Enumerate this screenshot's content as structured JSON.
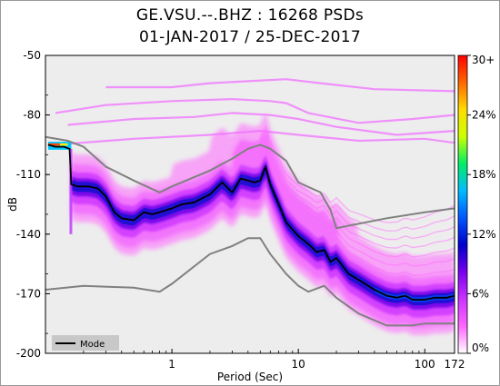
{
  "title_line1": "GE.VSU.--.BHZ : 16268 PSDs",
  "title_line2": "01-JAN-2017 / 25-DEC-2017",
  "chart_data": {
    "type": "heatmap",
    "xlabel": "Period (Sec)",
    "ylabel": "dB",
    "x_scale": "log",
    "xlim": [
      0.1,
      172
    ],
    "ylim": [
      -200,
      -50
    ],
    "x_ticks": [
      {
        "value": 1,
        "label": "1"
      },
      {
        "value": 10,
        "label": "10"
      },
      {
        "value": 100,
        "label": "100"
      },
      {
        "value": 172,
        "label": "172"
      }
    ],
    "y_ticks": [
      {
        "value": -50,
        "label": "-50"
      },
      {
        "value": -80,
        "label": "-80"
      },
      {
        "value": -110,
        "label": "-110"
      },
      {
        "value": -140,
        "label": "-140"
      },
      {
        "value": -170,
        "label": "-170"
      },
      {
        "value": -200,
        "label": "-200"
      }
    ],
    "colorbar": {
      "ticks": [
        "0%",
        "6%",
        "12%",
        "18%",
        "24%",
        "30+"
      ],
      "colors": [
        "#ffffff",
        "#ff66ff",
        "#cc33ff",
        "#7700ee",
        "#0000cc",
        "#0055ff",
        "#00bbff",
        "#00ee66",
        "#ccff00",
        "#ffdd00",
        "#ff6600",
        "#ff0000"
      ]
    },
    "legend": {
      "position": "bottom-left",
      "entries": [
        "Mode"
      ]
    },
    "mode_curve": {
      "x": [
        0.105,
        0.12,
        0.14,
        0.155,
        0.16,
        0.18,
        0.22,
        0.26,
        0.3,
        0.35,
        0.4,
        0.5,
        0.6,
        0.7,
        0.8,
        1.0,
        1.2,
        1.5,
        2.0,
        2.5,
        3.0,
        3.5,
        4.0,
        4.5,
        5.0,
        5.5,
        6.0,
        7.0,
        8.0,
        10.0,
        12.0,
        14.0,
        16.0,
        18.0,
        20.0,
        25.0,
        30.0,
        40.0,
        50.0,
        60.0,
        70.0,
        80.0,
        100.0,
        120.0,
        150.0,
        172.0
      ],
      "y": [
        -95,
        -96,
        -96,
        -97,
        -115,
        -116,
        -116,
        -117,
        -121,
        -129,
        -132,
        -133,
        -129,
        -130,
        -129,
        -127,
        -125,
        -124,
        -120,
        -114,
        -119,
        -112,
        -113,
        -114,
        -113,
        -106,
        -115,
        -125,
        -134,
        -141,
        -145,
        -149,
        -148,
        -154,
        -152,
        -160,
        -163,
        -168,
        -171,
        -172,
        -171,
        -173,
        -173,
        -172,
        -172,
        -171
      ]
    },
    "nlnm_curve": {
      "x": [
        0.1,
        0.2,
        0.5,
        0.8,
        1.0,
        2.0,
        3.0,
        4.0,
        5.0,
        6.0,
        8.0,
        10.0,
        12.0,
        16.0,
        20.0,
        30.0,
        50.0,
        80.0,
        100.0,
        172.0
      ],
      "y": [
        -168,
        -166,
        -167,
        -169,
        -165,
        -150,
        -146,
        -142,
        -142,
        -150,
        -160,
        -166,
        -169,
        -166,
        -172,
        -180,
        -186,
        -186,
        -185,
        -185
      ]
    },
    "nhnm_curve": {
      "x": [
        0.1,
        0.15,
        0.2,
        0.3,
        0.5,
        0.8,
        1.0,
        2.0,
        3.0,
        4.0,
        5.0,
        6.0,
        8.0,
        10.0,
        15.0,
        18.0,
        20.0,
        50.0,
        100.0,
        172.0
      ],
      "y": [
        -91,
        -93,
        -96,
        -106,
        -113,
        -119,
        -116,
        -108,
        -102,
        -97,
        -95,
        -97,
        -103,
        -114,
        -119,
        -128,
        -137,
        -132,
        -129,
        -127
      ]
    }
  }
}
